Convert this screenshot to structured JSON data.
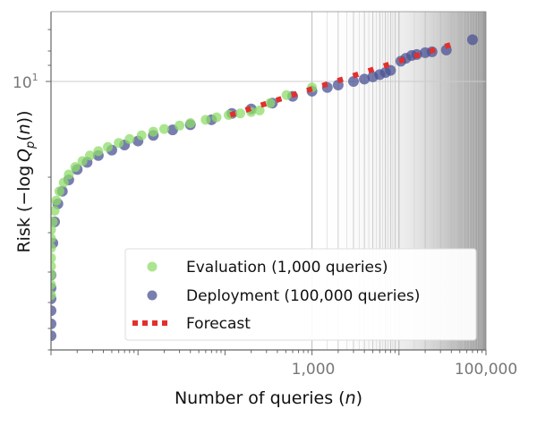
{
  "chart_data": {
    "type": "scatter",
    "x_scale": "log",
    "y_scale": "log",
    "xlim": [
      1,
      100000
    ],
    "ylim": [
      1,
      18.2
    ],
    "x_tick_labels": [
      {
        "value": 1000,
        "label": "1,000"
      },
      {
        "value": 100000,
        "label": "100,000"
      }
    ],
    "y_tick_labels": [
      {
        "value": 10,
        "base": "10",
        "exp": "1"
      }
    ],
    "xlabel_parts": [
      "Number of queries (",
      "n",
      ")"
    ],
    "ylabel_parts": [
      "Risk (−log ",
      "Q",
      "p",
      "(",
      "n",
      "))"
    ],
    "grid": true,
    "legend_position": "bottom-right",
    "colors": {
      "evaluation": "#8fdc6a",
      "deployment": "#4b5394",
      "forecast": "#e2302c"
    },
    "series": [
      {
        "name": "Evaluation (1,000 queries)",
        "kind": "points",
        "points": [
          [
            1,
            1.6
          ],
          [
            1,
            1.75
          ],
          [
            1,
            1.9
          ],
          [
            1,
            2.05
          ],
          [
            1,
            2.2
          ],
          [
            1,
            2.4
          ],
          [
            1,
            2.6
          ],
          [
            1,
            2.8
          ],
          [
            1.05,
            3.0
          ],
          [
            1.1,
            3.3
          ],
          [
            1.15,
            3.6
          ],
          [
            1.25,
            3.9
          ],
          [
            1.4,
            4.2
          ],
          [
            1.6,
            4.5
          ],
          [
            1.9,
            4.8
          ],
          [
            2.3,
            5.05
          ],
          [
            2.8,
            5.3
          ],
          [
            3.5,
            5.5
          ],
          [
            4.5,
            5.7
          ],
          [
            6,
            5.9
          ],
          [
            8,
            6.1
          ],
          [
            11,
            6.3
          ],
          [
            15,
            6.5
          ],
          [
            20,
            6.65
          ],
          [
            30,
            6.85
          ],
          [
            40,
            7.0
          ],
          [
            60,
            7.2
          ],
          [
            80,
            7.35
          ],
          [
            110,
            7.5
          ],
          [
            150,
            7.6
          ],
          [
            200,
            7.7
          ],
          [
            250,
            7.8
          ],
          [
            330,
            8.3
          ],
          [
            510,
            8.9
          ],
          [
            1000,
            9.5
          ]
        ]
      },
      {
        "name": "Deployment (100,000 queries)",
        "kind": "points",
        "points": [
          [
            1,
            1.13
          ],
          [
            1,
            1.25
          ],
          [
            1,
            1.4
          ],
          [
            1,
            1.55
          ],
          [
            1,
            1.7
          ],
          [
            1,
            1.9
          ],
          [
            1.05,
            2.5
          ],
          [
            1.1,
            3.0
          ],
          [
            1.2,
            3.5
          ],
          [
            1.35,
            3.9
          ],
          [
            1.6,
            4.3
          ],
          [
            2,
            4.7
          ],
          [
            2.6,
            5.0
          ],
          [
            3.5,
            5.3
          ],
          [
            5,
            5.55
          ],
          [
            7,
            5.8
          ],
          [
            10,
            6.0
          ],
          [
            15,
            6.3
          ],
          [
            25,
            6.6
          ],
          [
            40,
            6.9
          ],
          [
            70,
            7.2
          ],
          [
            120,
            7.6
          ],
          [
            200,
            7.9
          ],
          [
            350,
            8.3
          ],
          [
            600,
            8.8
          ],
          [
            1000,
            9.2
          ],
          [
            1500,
            9.5
          ],
          [
            2000,
            9.7
          ],
          [
            3000,
            10.0
          ],
          [
            4000,
            10.2
          ],
          [
            5000,
            10.4
          ],
          [
            6000,
            10.6
          ],
          [
            7000,
            10.8
          ],
          [
            8000,
            11.0
          ],
          [
            10500,
            11.9
          ],
          [
            12000,
            12.2
          ],
          [
            14000,
            12.5
          ],
          [
            16000,
            12.6
          ],
          [
            20000,
            12.8
          ],
          [
            24000,
            12.9
          ],
          [
            35000,
            13.1
          ],
          [
            70000,
            14.3
          ]
        ]
      },
      {
        "name": "Forecast",
        "kind": "dotted-line",
        "points": [
          [
            115,
            7.5
          ],
          [
            45000,
            13.9
          ]
        ]
      }
    ]
  }
}
